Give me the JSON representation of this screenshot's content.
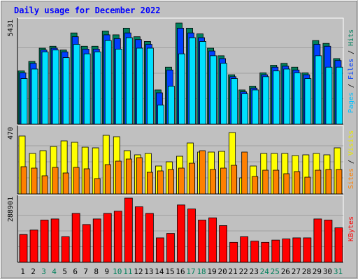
{
  "chart_data": {
    "type": "bar",
    "title": "Daily usage for December 2022",
    "categories": [
      "1",
      "2",
      "3",
      "4",
      "5",
      "6",
      "7",
      "8",
      "9",
      "10",
      "11",
      "12",
      "13",
      "14",
      "15",
      "16",
      "17",
      "18",
      "19",
      "20",
      "21",
      "22",
      "23",
      "24",
      "25",
      "26",
      "27",
      "28",
      "29",
      "30",
      "31"
    ],
    "weekend_days": [
      "3",
      "4",
      "10",
      "11",
      "17",
      "18",
      "24",
      "25",
      "31"
    ],
    "grid": true,
    "panels": [
      {
        "id": "pages-files-hits",
        "ymax_label": "5431",
        "ylim": [
          0,
          5431
        ],
        "ylabel_parts": [
          "Pages",
          " / ",
          "Files",
          " / ",
          "Hits"
        ],
        "series": [
          {
            "name": "Hits",
            "values": [
              2800,
              3300,
              4000,
              4100,
              3900,
              4800,
              4100,
              4100,
              4900,
              4700,
              5050,
              4600,
              4350,
              1800,
              3000,
              5320,
              5050,
              4750,
              4000,
              3600,
              2600,
              1800,
              2000,
              2700,
              3100,
              3200,
              3000,
              2700,
              4400,
              4250,
              3450
            ]
          },
          {
            "name": "Files",
            "values": [
              2700,
              3200,
              3900,
              4000,
              3800,
              4600,
              3950,
              3950,
              4700,
              4500,
              4800,
              4450,
              4200,
              1650,
              2850,
              5050,
              4800,
              4550,
              3850,
              3450,
              2500,
              1700,
              1900,
              2600,
              3000,
              3050,
              2850,
              2600,
              4200,
              4100,
              3350
            ]
          },
          {
            "name": "Pages",
            "values": [
              2400,
              2900,
              3800,
              3900,
              3500,
              4200,
              3700,
              3800,
              4400,
              3950,
              4550,
              4000,
              4000,
              1000,
              2000,
              3700,
              4550,
              4350,
              3600,
              3200,
              2400,
              1600,
              1800,
              2500,
              2800,
              2900,
              2700,
              2400,
              3600,
              3000,
              3000
            ]
          }
        ]
      },
      {
        "id": "visits-sites",
        "ymax_label": "470",
        "ylim": [
          0,
          470
        ],
        "ylabel_parts": [
          "Sites",
          " / ",
          "Visits"
        ],
        "series": [
          {
            "name": "Visits",
            "values": [
              415,
              290,
              310,
              340,
              380,
              370,
              335,
              330,
              420,
              410,
              310,
              280,
              290,
              200,
              230,
              270,
              365,
              300,
              300,
              305,
              440,
              115,
              200,
              290,
              290,
              290,
              275,
              280,
              290,
              280,
              330
            ]
          },
          {
            "name": "Sites",
            "values": [
              195,
              185,
              130,
              190,
              150,
              190,
              180,
              110,
              210,
              235,
              250,
              260,
              155,
              165,
              175,
              185,
              220,
              310,
              175,
              185,
              205,
              300,
              125,
              170,
              170,
              145,
              160,
              120,
              170,
              175,
              175
            ]
          }
        ]
      },
      {
        "id": "kbytes",
        "ymax_label": "288901",
        "ylim": [
          0,
          288901
        ],
        "ylabel_parts": [
          "KBytes"
        ],
        "series": [
          {
            "name": "KBytes",
            "values": [
              125000,
              145000,
              190000,
              195000,
              115000,
              220000,
              170000,
              195000,
              220000,
              230000,
              288901,
              250000,
              220000,
              110000,
              130000,
              258000,
              240000,
              190000,
              200000,
              165000,
              90000,
              115000,
              95000,
              90000,
              100000,
              105000,
              110000,
              110000,
              195000,
              190000,
              155000
            ]
          }
        ]
      }
    ],
    "colors": {
      "background": "#c0c0c0",
      "panel": "#c0c0c0",
      "gridline": "#a0a0a0",
      "title": "#0000ff",
      "weekend_label": "#00805c",
      "weekday_label": "#000000",
      "Hits": "#00805c",
      "Files": "#0040ff",
      "Pages": "#00e0ff",
      "Visits": "#ffff00",
      "Sites": "#ff8000",
      "KBytes": "#ff0000",
      "label_hits": "#00805c",
      "label_files": "#0040ff",
      "label_pages": "#00c0ff",
      "label_visits": "#e8e800",
      "label_sites": "#ff8000",
      "label_kbytes": "#ff0000",
      "separator": "#000000"
    }
  }
}
